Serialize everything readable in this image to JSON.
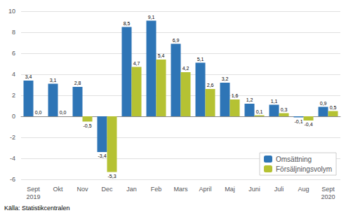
{
  "chart_data": {
    "type": "bar",
    "categories": [
      "Sept\n2019",
      "Okt",
      "Nov",
      "Dec",
      "Jan",
      "Feb",
      "Mars",
      "April",
      "Maj",
      "Juni",
      "Juli",
      "Aug",
      "Sept\n2020"
    ],
    "series": [
      {
        "name": "Omsättning",
        "color": "#2E75B6",
        "values": [
          3.4,
          3.1,
          2.8,
          -3.4,
          8.5,
          9.1,
          6.9,
          5.1,
          3.2,
          1.2,
          1.1,
          -0.1,
          0.9
        ],
        "value_labels": [
          "3,4",
          "3,1",
          "2,8",
          "-3,4",
          "8,5",
          "9,1",
          "6,9",
          "5,1",
          "3,2",
          "1,2",
          "1,1",
          "-0,1",
          "0,9"
        ]
      },
      {
        "name": "Försäljningsvolym",
        "color": "#B5C233",
        "values": [
          0.0,
          0.0,
          -0.5,
          -5.3,
          4.7,
          5.4,
          4.2,
          2.6,
          1.6,
          0.1,
          0.3,
          -0.4,
          0.5
        ],
        "value_labels": [
          "0,0",
          "0,0",
          "-0,5",
          "-5,3",
          "4,7",
          "5,4",
          "4,2",
          "2,6",
          "1,6",
          "0,1",
          "0,3",
          "-0,4",
          "0,5"
        ]
      }
    ],
    "ylim": [
      -6,
      10
    ],
    "yticks": [
      -6,
      -4,
      -2,
      0,
      2,
      4,
      6,
      8,
      10
    ],
    "grid": true,
    "legend": "lower right",
    "data_labels": true,
    "annotations": [
      "Källa: Statistikcentralen"
    ]
  }
}
